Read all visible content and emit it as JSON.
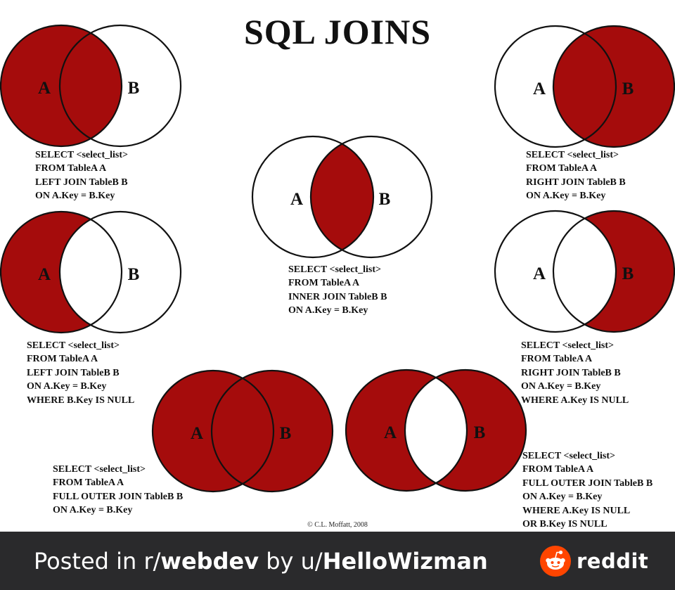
{
  "title": "SQL JOINS",
  "colors": {
    "fill": "#a50c0c",
    "stroke": "#111111",
    "footer_bg": "#2a2a2c",
    "reddit_orange": "#ff4500"
  },
  "set_labels": {
    "a": "A",
    "b": "B"
  },
  "diagrams": [
    {
      "id": "left-join",
      "shaded": "a",
      "sql": [
        "SELECT <select_list>",
        "FROM TableA A",
        "LEFT JOIN TableB B",
        "ON A.Key = B.Key"
      ]
    },
    {
      "id": "right-join",
      "shaded": "b",
      "sql": [
        "SELECT <select_list>",
        "FROM TableA A",
        "RIGHT JOIN TableB B",
        "ON A.Key = B.Key"
      ]
    },
    {
      "id": "inner-join",
      "shaded": "intersection",
      "sql": [
        "SELECT <select_list>",
        "FROM TableA A",
        "INNER JOIN TableB B",
        "ON A.Key = B.Key"
      ]
    },
    {
      "id": "left-excluding-join",
      "shaded": "a-only",
      "sql": [
        "SELECT <select_list>",
        "FROM TableA A",
        "LEFT JOIN TableB B",
        "ON A.Key = B.Key",
        "WHERE B.Key IS NULL"
      ]
    },
    {
      "id": "right-excluding-join",
      "shaded": "b-only",
      "sql": [
        "SELECT <select_list>",
        "FROM TableA A",
        "RIGHT JOIN TableB B",
        "ON A.Key = B.Key",
        "WHERE A.Key IS NULL"
      ]
    },
    {
      "id": "full-outer-join",
      "shaded": "both",
      "sql": [
        "SELECT <select_list>",
        "FROM TableA A",
        "FULL OUTER JOIN TableB B",
        "ON A.Key = B.Key"
      ]
    },
    {
      "id": "full-outer-excluding-join",
      "shaded": "symmetric-difference",
      "sql": [
        "SELECT <select_list>",
        "FROM TableA A",
        "FULL OUTER JOIN TableB B",
        "ON A.Key = B.Key",
        "WHERE A.Key IS NULL",
        "OR B.Key IS NULL"
      ]
    }
  ],
  "copyright": "© C.L. Moffatt, 2008",
  "footer": {
    "prefix": "Posted in r/",
    "subreddit": "webdev",
    "by": " by u/",
    "user": "HelloWizman",
    "brand": "reddit",
    "icon": "reddit-snoo-icon"
  }
}
